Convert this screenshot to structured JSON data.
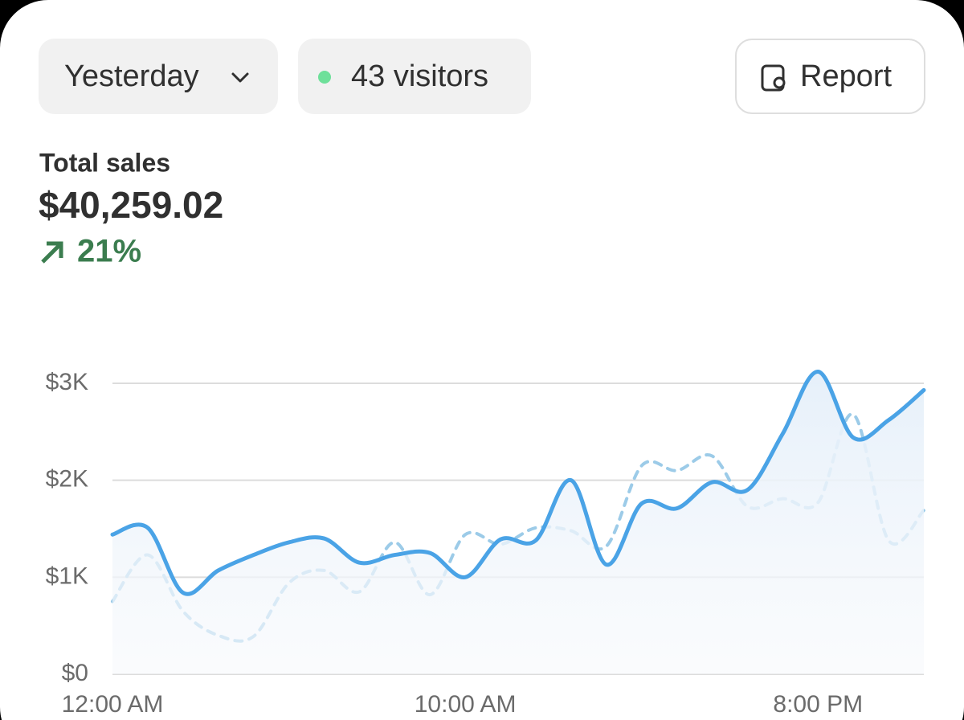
{
  "toolbar": {
    "period": "Yesterday",
    "visitors": "43 visitors",
    "report": "Report"
  },
  "summary": {
    "label": "Total sales",
    "value": "$40,259.02",
    "change": "21%"
  },
  "chart_data": {
    "type": "line",
    "x": [
      0,
      1,
      2,
      3,
      4,
      5,
      6,
      7,
      8,
      9,
      10,
      11,
      12,
      13,
      14,
      15,
      16,
      17,
      18,
      19,
      20,
      21,
      22,
      23
    ],
    "xlim": [
      0,
      23
    ],
    "xticks": [
      {
        "value": 0,
        "label": "12:00 AM"
      },
      {
        "value": 10,
        "label": "10:00 AM"
      },
      {
        "value": 20,
        "label": "8:00 PM"
      }
    ],
    "ylim": [
      0,
      3000
    ],
    "yticks": [
      {
        "value": 0,
        "label": "$0"
      },
      {
        "value": 1000,
        "label": "$1K"
      },
      {
        "value": 2000,
        "label": "$2K"
      },
      {
        "value": 3000,
        "label": "$3K"
      }
    ],
    "grid": true,
    "series": [
      {
        "color": "#4aa3e6",
        "dashed": false,
        "area": true,
        "values": [
          1440,
          1510,
          840,
          1070,
          1230,
          1360,
          1400,
          1150,
          1230,
          1250,
          1000,
          1390,
          1380,
          2000,
          1130,
          1760,
          1710,
          1980,
          1900,
          2480,
          3120,
          2440,
          2620,
          2930
        ]
      },
      {
        "color": "#9ccbe8",
        "dashed": true,
        "area": false,
        "values": [
          750,
          1230,
          650,
          400,
          390,
          940,
          1070,
          850,
          1360,
          820,
          1440,
          1340,
          1510,
          1480,
          1320,
          2150,
          2100,
          2250,
          1730,
          1810,
          1770,
          2680,
          1380,
          1690
        ]
      }
    ]
  }
}
